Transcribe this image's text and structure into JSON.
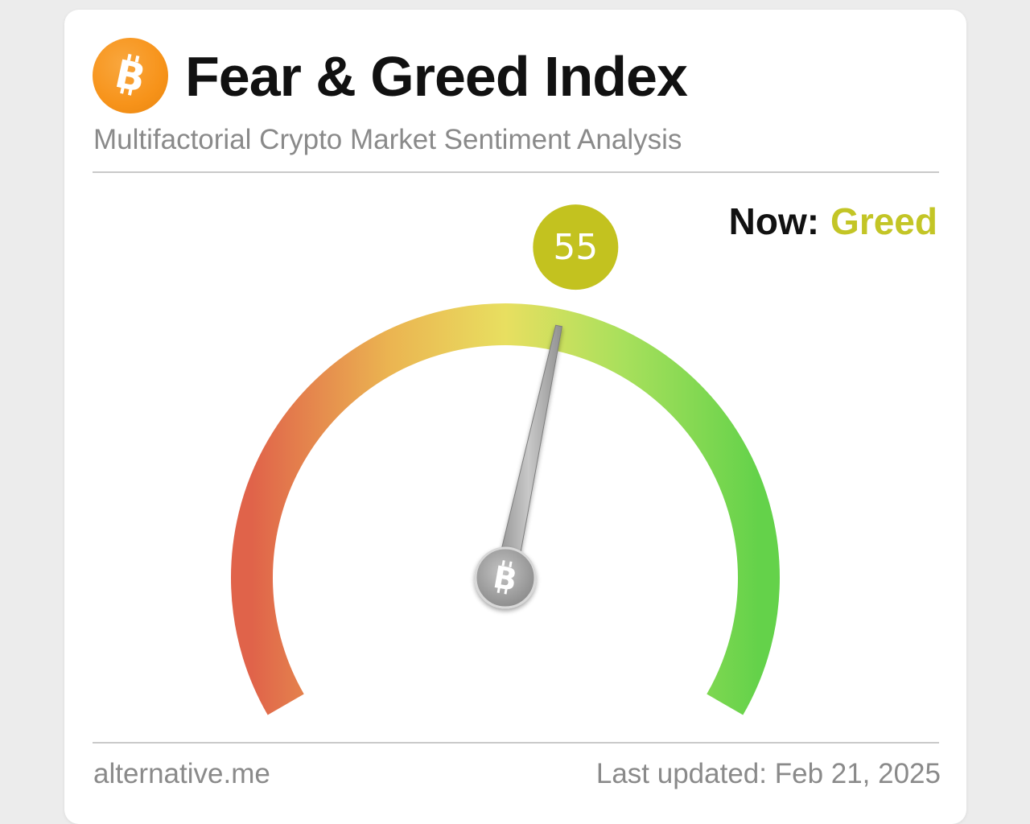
{
  "header": {
    "title": "Fear & Greed Index",
    "subtitle": "Multifactorial Crypto Market Sentiment Analysis",
    "logo_icon": "bitcoin-icon"
  },
  "status": {
    "now_label": "Now:",
    "now_value": "Greed",
    "now_color": "#c3c526"
  },
  "gauge": {
    "value": 55,
    "value_label": "55",
    "min": 0,
    "max": 100,
    "badge_color": "#c3c21f",
    "gradient_colors": [
      "#e0634a",
      "#ebb451",
      "#e8df60",
      "#a9e05c",
      "#64d24a"
    ],
    "hub_icon": "bitcoin-icon"
  },
  "footer": {
    "source": "alternative.me",
    "updated": "Last updated: Feb 21, 2025"
  }
}
